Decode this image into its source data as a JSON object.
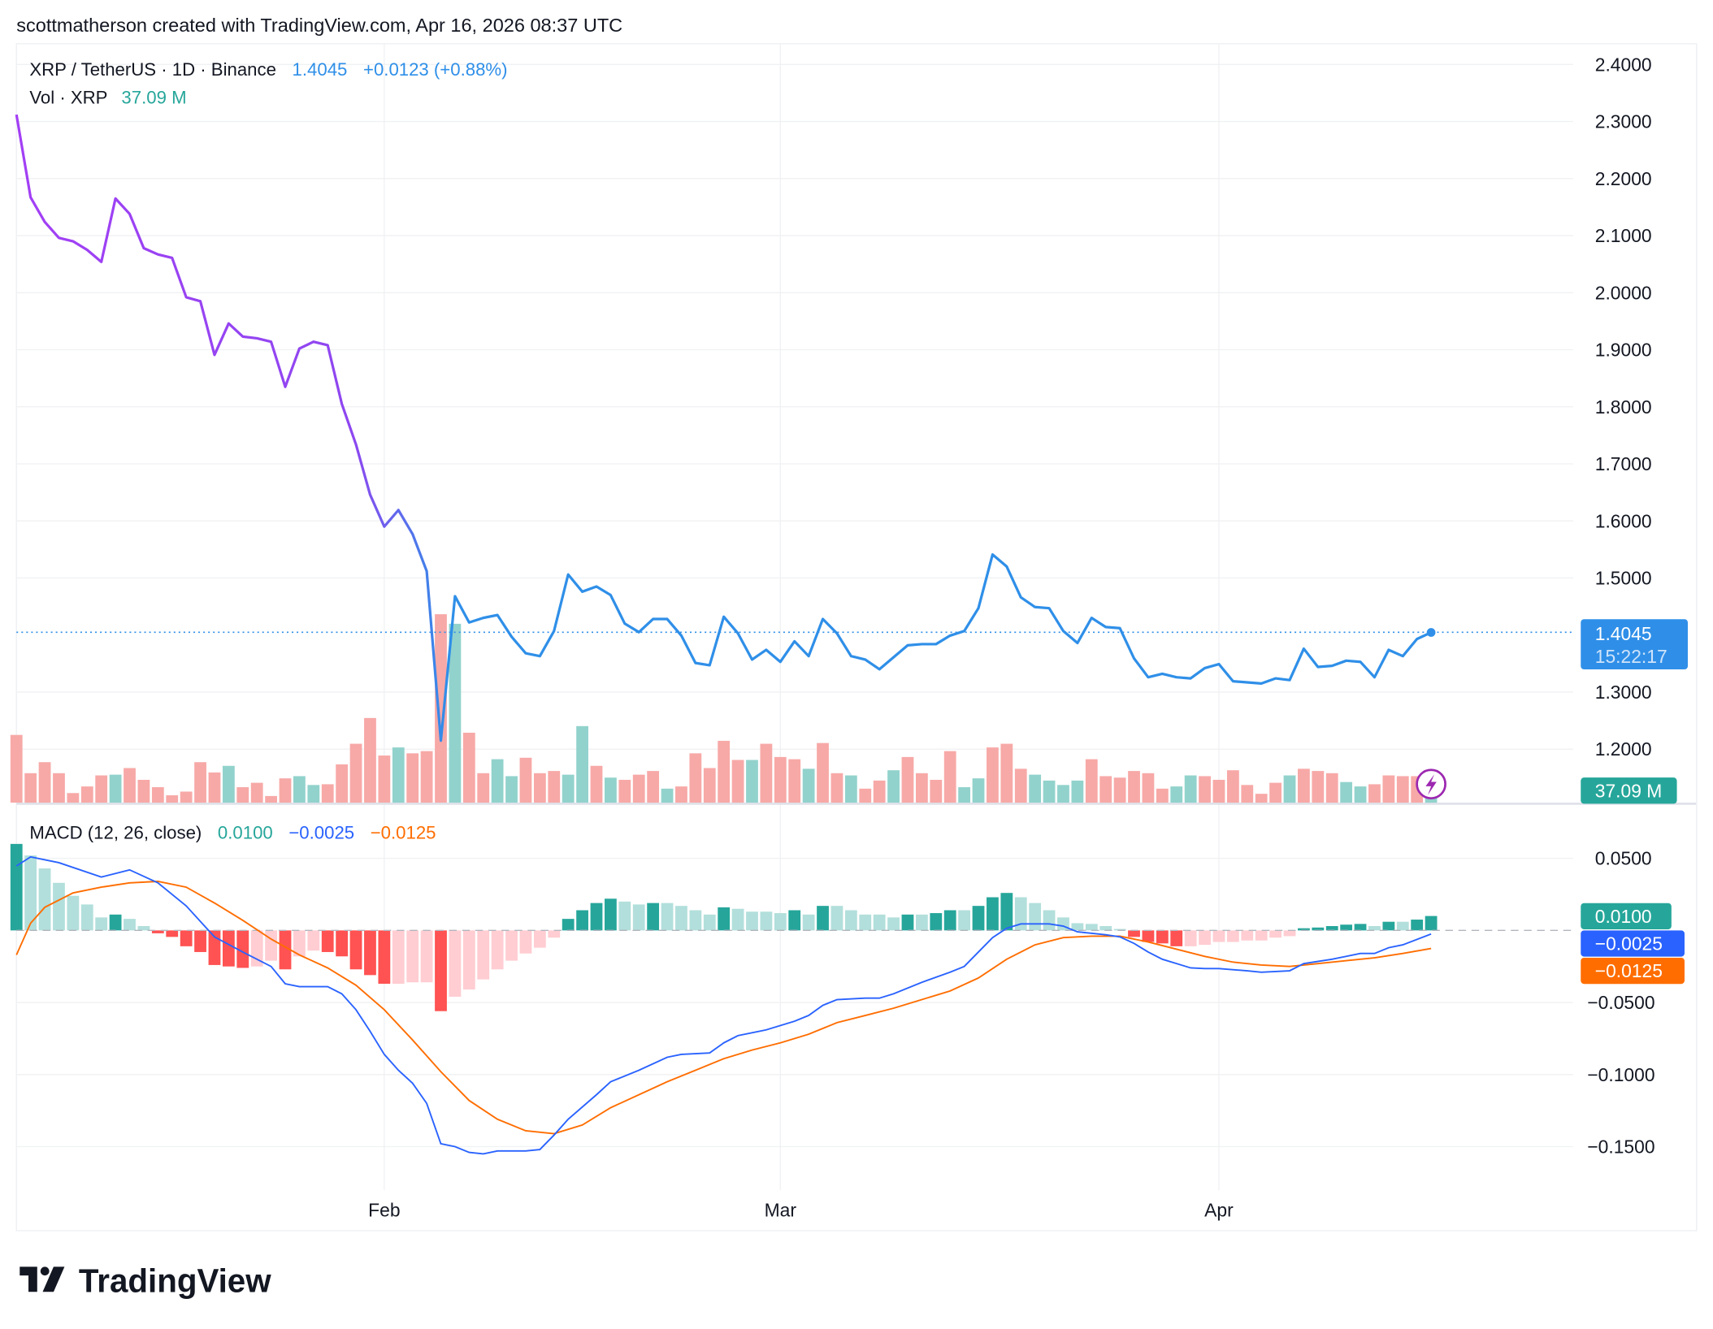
{
  "header": {
    "caption": "scottmatherson created with TradingView.com, Apr 16, 2026 08:37 UTC"
  },
  "legend": {
    "symbol": "XRP / TetherUS · 1D · Binance",
    "last": "1.4045",
    "change": "+0.0123 (+0.88%)",
    "vol_label": "Vol · XRP",
    "vol_value": "37.09 M",
    "macd_label": "MACD (12, 26, close)",
    "macd_hist": "0.0100",
    "macd_line": "−0.0025",
    "macd_signal": "−0.0125"
  },
  "price_axis": {
    "ticks": [
      "2.4000",
      "2.3000",
      "2.2000",
      "2.1000",
      "2.0000",
      "1.9000",
      "1.8000",
      "1.7000",
      "1.6000",
      "1.5000",
      "1.3000",
      "1.2000"
    ],
    "last_price_label": "1.4045",
    "countdown": "15:22:17",
    "volume_label": "37.09 M"
  },
  "macd_axis": {
    "ticks": [
      "0.0500",
      "−0.0500",
      "−0.1000",
      "−0.1500"
    ],
    "hist_label": "0.0100",
    "macd_label": "−0.0025",
    "signal_label": "−0.0125"
  },
  "time_axis": {
    "labels": [
      "Feb",
      "Mar",
      "Apr"
    ]
  },
  "logo": {
    "text": "TradingView"
  },
  "colors": {
    "price_line_start": "#a33ff5",
    "price_line_end": "#2f8fe8",
    "vol_up": "#92d2cc",
    "vol_down": "#f7a9a7",
    "hist_up_strong": "#26a69a",
    "hist_up_weak": "#b2dfdb",
    "hist_down_strong": "#ff5252",
    "hist_down_weak": "#ffcdd2",
    "macd": "#2962ff",
    "signal": "#ff6d00",
    "last_price": "#2f8fe8",
    "lightning_icon": "#9c27b0"
  },
  "chart_data": [
    {
      "type": "line",
      "title": "XRP / TetherUS · 1D · Binance",
      "ylim": [
        1.15,
        2.45
      ],
      "grid": true,
      "x": [
        "2026-01-06",
        "2026-01-07",
        "2026-01-08",
        "2026-01-09",
        "2026-01-10",
        "2026-01-11",
        "2026-01-12",
        "2026-01-13",
        "2026-01-14",
        "2026-01-15",
        "2026-01-16",
        "2026-01-17",
        "2026-01-18",
        "2026-01-19",
        "2026-01-20",
        "2026-01-21",
        "2026-01-22",
        "2026-01-23",
        "2026-01-24",
        "2026-01-25",
        "2026-01-26",
        "2026-01-27",
        "2026-01-28",
        "2026-01-29",
        "2026-01-30",
        "2026-01-31",
        "2026-02-01",
        "2026-02-02",
        "2026-02-03",
        "2026-02-04",
        "2026-02-05",
        "2026-02-06",
        "2026-02-07",
        "2026-02-08",
        "2026-02-09",
        "2026-02-10",
        "2026-02-11",
        "2026-02-12",
        "2026-02-13",
        "2026-02-14",
        "2026-02-15",
        "2026-02-16",
        "2026-02-17",
        "2026-02-18",
        "2026-02-19",
        "2026-02-20",
        "2026-02-21",
        "2026-02-22",
        "2026-02-23",
        "2026-02-24",
        "2026-02-25",
        "2026-02-26",
        "2026-02-27",
        "2026-02-28",
        "2026-03-01",
        "2026-03-02",
        "2026-03-03",
        "2026-03-04",
        "2026-03-05",
        "2026-03-06",
        "2026-03-07",
        "2026-03-08",
        "2026-03-09",
        "2026-03-10",
        "2026-03-11",
        "2026-03-12",
        "2026-03-13",
        "2026-03-14",
        "2026-03-15",
        "2026-03-16",
        "2026-03-17",
        "2026-03-18",
        "2026-03-19",
        "2026-03-20",
        "2026-03-21",
        "2026-03-22",
        "2026-03-23",
        "2026-03-24",
        "2026-03-25",
        "2026-03-26",
        "2026-03-27",
        "2026-03-28",
        "2026-03-29",
        "2026-03-30",
        "2026-03-31",
        "2026-04-01",
        "2026-04-02",
        "2026-04-03",
        "2026-04-04",
        "2026-04-05",
        "2026-04-06",
        "2026-04-07",
        "2026-04-08",
        "2026-04-09",
        "2026-04-10",
        "2026-04-11",
        "2026-04-12",
        "2026-04-13",
        "2026-04-14",
        "2026-04-15",
        "2026-04-16"
      ],
      "close": [
        2.312,
        2.167,
        2.124,
        2.096,
        2.09,
        2.075,
        2.054,
        2.165,
        2.138,
        2.078,
        2.067,
        2.061,
        1.992,
        1.985,
        1.891,
        1.946,
        1.923,
        1.92,
        1.914,
        1.835,
        1.902,
        1.914,
        1.908,
        1.805,
        1.734,
        1.646,
        1.59,
        1.619,
        1.577,
        1.512,
        1.215,
        1.468,
        1.422,
        1.43,
        1.435,
        1.397,
        1.368,
        1.363,
        1.407,
        1.506,
        1.476,
        1.485,
        1.47,
        1.42,
        1.405,
        1.428,
        1.428,
        1.399,
        1.351,
        1.347,
        1.432,
        1.403,
        1.357,
        1.374,
        1.353,
        1.389,
        1.363,
        1.428,
        1.403,
        1.363,
        1.357,
        1.34,
        1.361,
        1.382,
        1.384,
        1.384,
        1.399,
        1.407,
        1.447,
        1.541,
        1.52,
        1.466,
        1.449,
        1.447,
        1.407,
        1.386,
        1.43,
        1.414,
        1.412,
        1.359,
        1.326,
        1.332,
        1.326,
        1.324,
        1.342,
        1.349,
        1.319,
        1.317,
        1.315,
        1.324,
        1.321,
        1.376,
        1.344,
        1.346,
        1.355,
        1.353,
        1.326,
        1.374,
        1.363,
        1.393,
        1.4045
      ],
      "last_value": 1.4045
    },
    {
      "type": "bar",
      "series": [
        {
          "name": "Vol · XRP"
        }
      ],
      "volume_millions": [
        92,
        40,
        55,
        40,
        13,
        22,
        37,
        38,
        47,
        31,
        21,
        10,
        15,
        55,
        41,
        50,
        21,
        27,
        9,
        33,
        36,
        24,
        25,
        52,
        80,
        115,
        64,
        75,
        67,
        70,
        256,
        243,
        95,
        40,
        59,
        36,
        61,
        40,
        43,
        38,
        104,
        50,
        34,
        31,
        38,
        43,
        19,
        22,
        67,
        47,
        84,
        58,
        58,
        80,
        62,
        59,
        46,
        81,
        40,
        37,
        19,
        30,
        44,
        62,
        40,
        31,
        70,
        21,
        33,
        75,
        80,
        46,
        38,
        30,
        24,
        30,
        59,
        36,
        34,
        43,
        40,
        19,
        22,
        37,
        36,
        31,
        44,
        24,
        12,
        27,
        37,
        46,
        43,
        40,
        28,
        22,
        25,
        37,
        36,
        36,
        37.09
      ],
      "direction": "dddddddudddddddudddduudddddudddudduudddu udu dddudddddudddudduddudddduuddduuuudddddduudddddduddduuddddudududdddudu"
    },
    {
      "type": "line",
      "title": "MACD (12, 26, close)",
      "ylim": [
        -0.17,
        0.065
      ],
      "macd": [
        [
          "2026-01-06",
          0.0447
        ],
        [
          "2026-01-07",
          0.051
        ],
        [
          "2026-01-09",
          0.047
        ],
        [
          "2026-01-12",
          0.037
        ],
        [
          "2026-01-14",
          0.042
        ],
        [
          "2026-01-16",
          0.033
        ],
        [
          "2026-01-18",
          0.017
        ],
        [
          "2026-01-20",
          -0.0045
        ],
        [
          "2026-01-22",
          -0.015
        ],
        [
          "2026-01-24",
          -0.025
        ],
        [
          "2026-01-25",
          -0.037
        ],
        [
          "2026-01-26",
          -0.039
        ],
        [
          "2026-01-28",
          -0.039
        ],
        [
          "2026-01-29",
          -0.044
        ],
        [
          "2026-01-30",
          -0.055
        ],
        [
          "2026-01-31",
          -0.07
        ],
        [
          "2026-02-01",
          -0.086
        ],
        [
          "2026-02-02",
          -0.097
        ],
        [
          "2026-02-03",
          -0.106
        ],
        [
          "2026-02-04",
          -0.12
        ],
        [
          "2026-02-05",
          -0.148
        ],
        [
          "2026-02-06",
          -0.15
        ],
        [
          "2026-02-07",
          -0.154
        ],
        [
          "2026-02-08",
          -0.155
        ],
        [
          "2026-02-09",
          -0.153
        ],
        [
          "2026-02-11",
          -0.153
        ],
        [
          "2026-02-12",
          -0.152
        ],
        [
          "2026-02-13",
          -0.142
        ],
        [
          "2026-02-14",
          -0.131
        ],
        [
          "2026-02-16",
          -0.114
        ],
        [
          "2026-02-17",
          -0.105
        ],
        [
          "2026-02-19",
          -0.097
        ],
        [
          "2026-02-21",
          -0.088
        ],
        [
          "2026-02-22",
          -0.086
        ],
        [
          "2026-02-24",
          -0.085
        ],
        [
          "2026-02-25",
          -0.078
        ],
        [
          "2026-02-26",
          -0.073
        ],
        [
          "2026-02-28",
          -0.069
        ],
        [
          "2026-03-02",
          -0.063
        ],
        [
          "2026-03-03",
          -0.059
        ],
        [
          "2026-03-04",
          -0.052
        ],
        [
          "2026-03-05",
          -0.048
        ],
        [
          "2026-03-07",
          -0.047
        ],
        [
          "2026-03-08",
          -0.047
        ],
        [
          "2026-03-09",
          -0.044
        ],
        [
          "2026-03-11",
          -0.036
        ],
        [
          "2026-03-13",
          -0.029
        ],
        [
          "2026-03-14",
          -0.025
        ],
        [
          "2026-03-15",
          -0.015
        ],
        [
          "2026-03-16",
          -0.005
        ],
        [
          "2026-03-17",
          0.0015
        ],
        [
          "2026-03-18",
          0.0045
        ],
        [
          "2026-03-20",
          0.0045
        ],
        [
          "2026-03-21",
          0.003
        ],
        [
          "2026-03-22",
          -0.001
        ],
        [
          "2026-03-24",
          -0.003
        ],
        [
          "2026-03-25",
          -0.0045
        ],
        [
          "2026-03-26",
          -0.009
        ],
        [
          "2026-03-27",
          -0.015
        ],
        [
          "2026-03-28",
          -0.02
        ],
        [
          "2026-03-29",
          -0.023
        ],
        [
          "2026-03-30",
          -0.026
        ],
        [
          "2026-03-31",
          -0.0265
        ],
        [
          "2026-04-01",
          -0.0265
        ],
        [
          "2026-04-03",
          -0.028
        ],
        [
          "2026-04-04",
          -0.029
        ],
        [
          "2026-04-06",
          -0.028
        ],
        [
          "2026-04-07",
          -0.023
        ],
        [
          "2026-04-09",
          -0.02
        ],
        [
          "2026-04-11",
          -0.016
        ],
        [
          "2026-04-12",
          -0.016
        ],
        [
          "2026-04-13",
          -0.012
        ],
        [
          "2026-04-14",
          -0.01
        ],
        [
          "2026-04-16",
          -0.0025
        ]
      ],
      "signal": [
        [
          "2026-01-06",
          -0.017
        ],
        [
          "2026-01-07",
          0.005
        ],
        [
          "2026-01-08",
          0.016
        ],
        [
          "2026-01-10",
          0.026
        ],
        [
          "2026-01-12",
          0.03
        ],
        [
          "2026-01-14",
          0.033
        ],
        [
          "2026-01-16",
          0.034
        ],
        [
          "2026-01-18",
          0.03
        ],
        [
          "2026-01-20",
          0.019
        ],
        [
          "2026-01-22",
          0.007
        ],
        [
          "2026-01-24",
          -0.006
        ],
        [
          "2026-01-26",
          -0.017
        ],
        [
          "2026-01-28",
          -0.026
        ],
        [
          "2026-01-30",
          -0.038
        ],
        [
          "2026-02-01",
          -0.055
        ],
        [
          "2026-02-03",
          -0.076
        ],
        [
          "2026-02-05",
          -0.098
        ],
        [
          "2026-02-07",
          -0.118
        ],
        [
          "2026-02-09",
          -0.131
        ],
        [
          "2026-02-11",
          -0.139
        ],
        [
          "2026-02-13",
          -0.141
        ],
        [
          "2026-02-15",
          -0.135
        ],
        [
          "2026-02-17",
          -0.123
        ],
        [
          "2026-02-19",
          -0.114
        ],
        [
          "2026-02-21",
          -0.105
        ],
        [
          "2026-02-23",
          -0.097
        ],
        [
          "2026-02-25",
          -0.089
        ],
        [
          "2026-02-27",
          -0.083
        ],
        [
          "2026-03-01",
          -0.078
        ],
        [
          "2026-03-03",
          -0.072
        ],
        [
          "2026-03-05",
          -0.064
        ],
        [
          "2026-03-07",
          -0.059
        ],
        [
          "2026-03-09",
          -0.054
        ],
        [
          "2026-03-11",
          -0.048
        ],
        [
          "2026-03-13",
          -0.042
        ],
        [
          "2026-03-15",
          -0.033
        ],
        [
          "2026-03-17",
          -0.02
        ],
        [
          "2026-03-19",
          -0.01
        ],
        [
          "2026-03-21",
          -0.005
        ],
        [
          "2026-03-23",
          -0.004
        ],
        [
          "2026-03-25",
          -0.004
        ],
        [
          "2026-03-27",
          -0.008
        ],
        [
          "2026-03-29",
          -0.013
        ],
        [
          "2026-03-31",
          -0.018
        ],
        [
          "2026-04-02",
          -0.022
        ],
        [
          "2026-04-04",
          -0.024
        ],
        [
          "2026-04-06",
          -0.025
        ],
        [
          "2026-04-08",
          -0.023
        ],
        [
          "2026-04-10",
          -0.021
        ],
        [
          "2026-04-12",
          -0.019
        ],
        [
          "2026-04-14",
          -0.016
        ],
        [
          "2026-04-16",
          -0.0125
        ]
      ],
      "histogram": [
        0.06,
        0.052,
        0.043,
        0.033,
        0.024,
        0.018,
        0.009,
        0.011,
        0.008,
        0.003,
        -0.002,
        -0.0045,
        -0.011,
        -0.015,
        -0.024,
        -0.025,
        -0.026,
        -0.025,
        -0.021,
        -0.027,
        -0.018,
        -0.014,
        -0.015,
        -0.018,
        -0.027,
        -0.031,
        -0.037,
        -0.037,
        -0.036,
        -0.036,
        -0.056,
        -0.046,
        -0.041,
        -0.034,
        -0.027,
        -0.021,
        -0.016,
        -0.012,
        -0.005,
        0.008,
        0.014,
        0.019,
        0.022,
        0.02,
        0.018,
        0.019,
        0.019,
        0.017,
        0.014,
        0.011,
        0.016,
        0.015,
        0.013,
        0.013,
        0.012,
        0.014,
        0.011,
        0.017,
        0.017,
        0.014,
        0.011,
        0.011,
        0.009,
        0.011,
        0.011,
        0.012,
        0.014,
        0.014,
        0.017,
        0.023,
        0.026,
        0.023,
        0.019,
        0.014,
        0.009,
        0.005,
        0.0045,
        0.003,
        0.001,
        -0.0045,
        -0.008,
        -0.009,
        -0.011,
        -0.011,
        -0.01,
        -0.008,
        -0.008,
        -0.007,
        -0.007,
        -0.005,
        -0.004,
        0.0015,
        0.002,
        0.003,
        0.004,
        0.0045,
        0.003,
        0.006,
        0.006,
        0.0075,
        0.01
      ]
    }
  ]
}
